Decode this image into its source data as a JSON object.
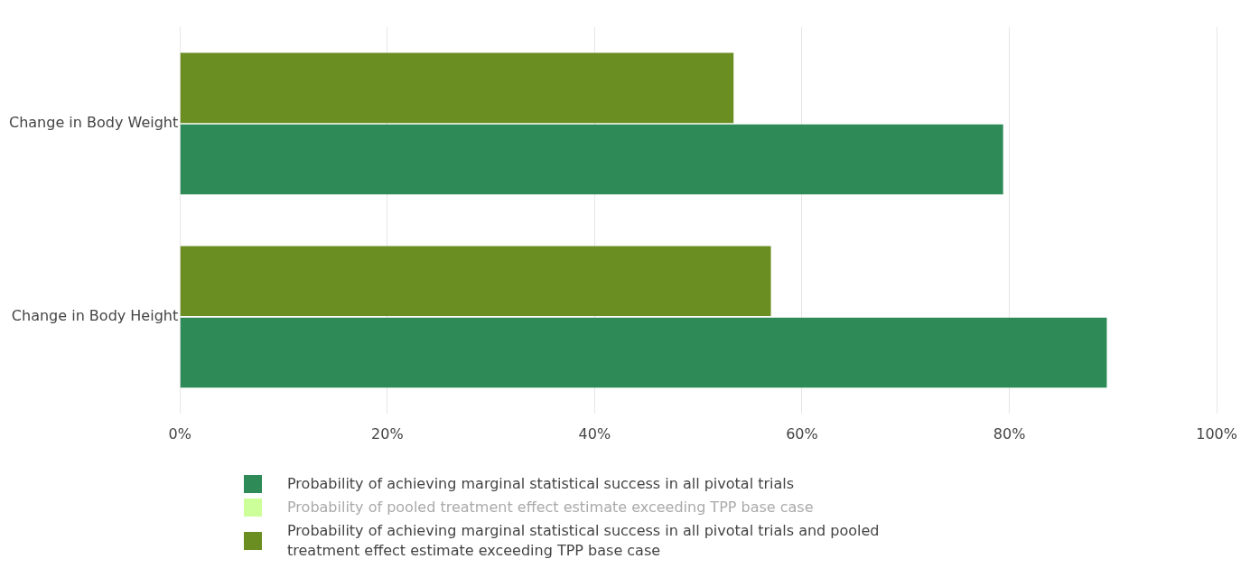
{
  "chart_data": {
    "type": "bar",
    "orientation": "horizontal",
    "categories": [
      "Change in Body Weight",
      "Change in Body Height"
    ],
    "series": [
      {
        "name": "Probability of achieving marginal statistical success in all pivotal trials",
        "color": "#2e8b57",
        "values": [
          79.4,
          89.4
        ]
      },
      {
        "name": "Probability of pooled treatment effect estimate exceeding TPP base case",
        "color": "#ccff99",
        "values": [
          null,
          null
        ]
      },
      {
        "name": "Probability of achieving marginal statistical success in all pivotal trials and pooled treatment effect estimate exceeding TPP base case",
        "color": "#6b8e23",
        "values": [
          53.4,
          57.0
        ]
      }
    ],
    "xlim": [
      0,
      100
    ],
    "xticks": [
      {
        "value": 0,
        "label": "0%"
      },
      {
        "value": 20,
        "label": "20%"
      },
      {
        "value": 40,
        "label": "40%"
      },
      {
        "value": 60,
        "label": "60%"
      },
      {
        "value": 80,
        "label": "80%"
      },
      {
        "value": 100,
        "label": "100%"
      }
    ],
    "grid": "x",
    "legend": "bottom"
  }
}
